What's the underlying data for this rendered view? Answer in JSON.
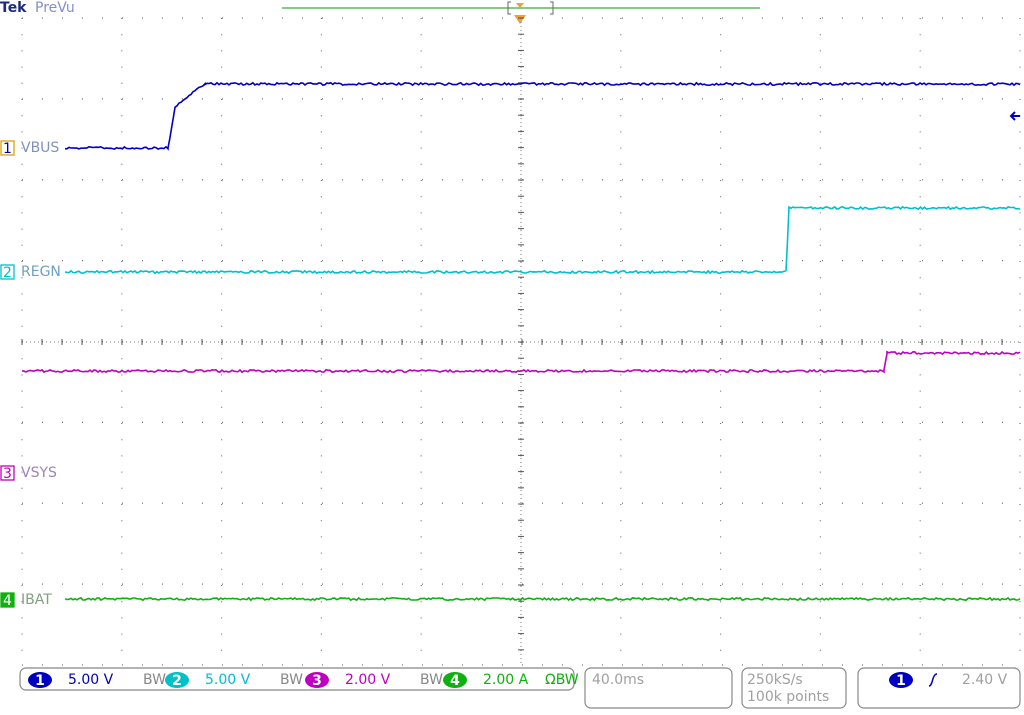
{
  "header": {
    "brand": "Tek",
    "mode": "PreVu"
  },
  "channels": [
    {
      "number": "1",
      "label": "VBUS",
      "scale": "5.00 V",
      "flag": "BW"
    },
    {
      "number": "2",
      "label": "REGN",
      "scale": "5.00 V",
      "flag": "BW"
    },
    {
      "number": "3",
      "label": "VSYS",
      "scale": "2.00 V",
      "flag": "BW"
    },
    {
      "number": "4",
      "label": "IBAT",
      "scale": "2.00 A",
      "flag": "ΩBW"
    }
  ],
  "timebase": "40.0ms",
  "acquisition": {
    "sample_rate": "250kS/s",
    "record_length": "100k points"
  },
  "trigger": {
    "source": "1",
    "level": "2.40 V"
  }
}
